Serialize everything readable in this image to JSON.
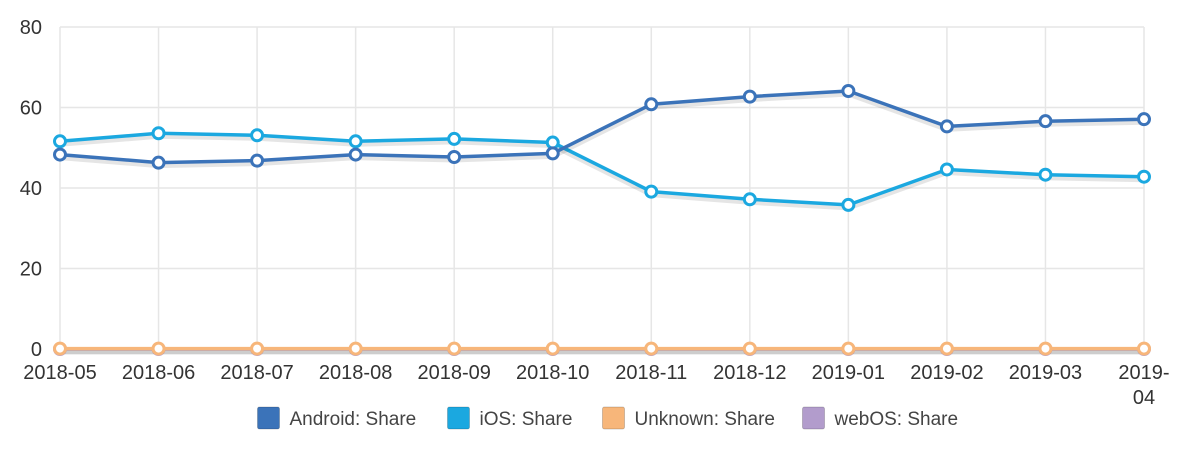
{
  "chart_data": {
    "type": "line",
    "title": "",
    "xlabel": "",
    "ylabel": "",
    "ylim": [
      0,
      80
    ],
    "yticks": [
      0,
      20,
      40,
      60,
      80
    ],
    "grid": true,
    "legend_position": "bottom",
    "categories": [
      "2018-05",
      "2018-06",
      "2018-07",
      "2018-08",
      "2018-09",
      "2018-10",
      "2018-11",
      "2018-12",
      "2019-01",
      "2019-02",
      "2019-03",
      "2019-04"
    ],
    "series": [
      {
        "name": "Android: Share",
        "color": "#3b73b9",
        "values": [
          48.3,
          46.3,
          46.8,
          48.3,
          47.7,
          48.6,
          60.8,
          62.7,
          64.1,
          55.3,
          56.6,
          57.1
        ]
      },
      {
        "name": "iOS: Share",
        "color": "#1ba8e0",
        "values": [
          51.6,
          53.6,
          53.1,
          51.6,
          52.2,
          51.3,
          39.1,
          37.2,
          35.8,
          44.6,
          43.3,
          42.8
        ]
      },
      {
        "name": "Unknown: Share",
        "color": "#f7b67a",
        "values": [
          0.1,
          0.1,
          0.1,
          0.1,
          0.1,
          0.1,
          0.1,
          0.1,
          0.1,
          0.1,
          0.1,
          0.1
        ]
      },
      {
        "name": "webOS: Share",
        "color": "#b29ccc",
        "values": [
          0,
          0,
          0,
          0,
          0,
          0,
          0,
          0,
          0,
          0,
          0,
          0
        ]
      }
    ]
  }
}
